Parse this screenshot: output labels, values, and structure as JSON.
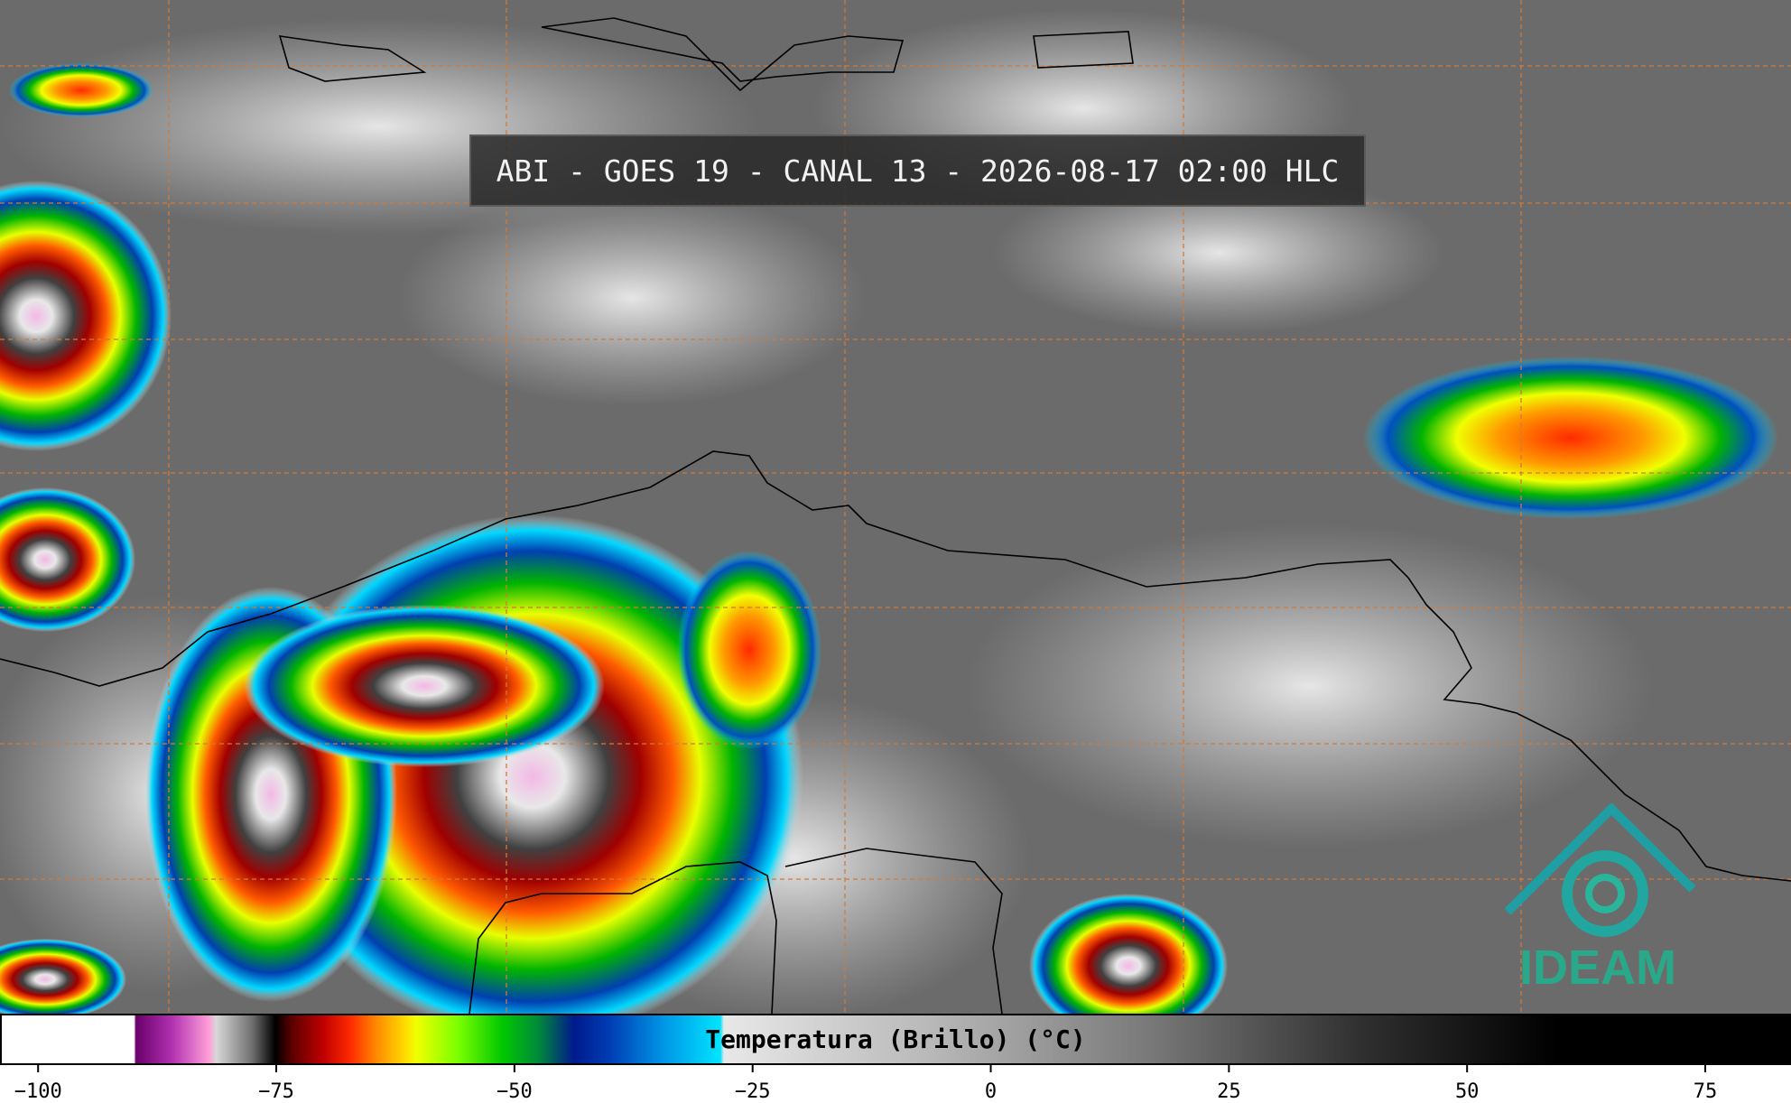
{
  "title": "ABI - GOES 19 - CANAL 13 - 2026-08-17 02:00 HLC",
  "logo": "IDEAM",
  "colorbar": {
    "label": "Temperatura (Brillo) (°C)",
    "lim": [
      -104,
      84
    ],
    "ticks": [
      {
        "value": -100,
        "label": "−100"
      },
      {
        "value": -75,
        "label": "−75"
      },
      {
        "value": -50,
        "label": "−50"
      },
      {
        "value": -25,
        "label": "−25"
      },
      0,
      25,
      50,
      75
    ]
  }
}
